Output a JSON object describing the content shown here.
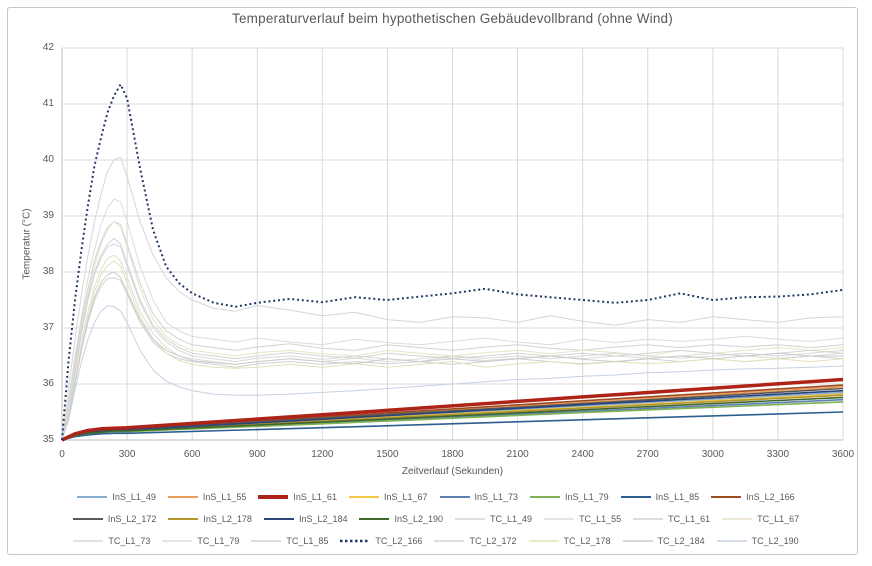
{
  "chart_data": {
    "type": "line",
    "title": "Temperaturverlauf beim hypothetischen Gebäudevollbrand (ohne Wind)",
    "xlabel": "Zeitverlauf (Sekunden)",
    "ylabel": "Temperatur  (°C)",
    "xlim": [
      0,
      3600
    ],
    "ylim": [
      35,
      42
    ],
    "x_ticks": [
      0,
      300,
      600,
      900,
      1200,
      1500,
      1800,
      2100,
      2400,
      2700,
      3000,
      3300,
      3600
    ],
    "y_ticks": [
      35,
      36,
      37,
      38,
      39,
      40,
      41,
      42
    ],
    "grid": true,
    "legend_position": "bottom",
    "legend_columns": 8,
    "colors": {
      "gridline": "#d9d9d9",
      "axis_line": "#bfbfbf",
      "text": "#595959",
      "highlight_red": "#ae2318",
      "highlight_navy_dotted": "#1f3864"
    },
    "x_grids": {
      "ins": [
        0,
        60,
        120,
        180,
        240,
        300,
        1200,
        2400,
        3600
      ],
      "tc": [
        0,
        30,
        60,
        90,
        120,
        150,
        180,
        210,
        240,
        270,
        300,
        360,
        420,
        480,
        540,
        600,
        700,
        800,
        900,
        1050,
        1200,
        1350,
        1500,
        1650,
        1800,
        1950,
        2100,
        2250,
        2400,
        2550,
        2700,
        2850,
        3000,
        3150,
        3300,
        3450,
        3600
      ]
    },
    "series": [
      {
        "name": "InS_L1_49",
        "color": "#85abd0",
        "width": 1.6,
        "dash": "solid",
        "z": 2,
        "grid": "ins",
        "values": [
          35,
          35.09,
          35.14,
          35.16,
          35.17,
          35.18,
          35.36,
          35.61,
          35.85
        ]
      },
      {
        "name": "InS_L1_55",
        "color": "#ee9c57",
        "width": 1.6,
        "dash": "solid",
        "z": 2,
        "grid": "ins",
        "values": [
          35,
          35.1,
          35.14,
          35.17,
          35.18,
          35.19,
          35.4,
          35.67,
          35.95
        ]
      },
      {
        "name": "InS_L1_61",
        "color": "#ae2318",
        "width": 3.5,
        "dash": "solid",
        "z": 3,
        "grid": "ins",
        "values": [
          35,
          35.11,
          35.17,
          35.2,
          35.21,
          35.22,
          35.45,
          35.77,
          36.08
        ]
      },
      {
        "name": "InS_L1_67",
        "color": "#f2c842",
        "width": 1.6,
        "dash": "solid",
        "z": 2,
        "grid": "ins",
        "values": [
          35,
          35.09,
          35.13,
          35.15,
          35.16,
          35.17,
          35.35,
          35.58,
          35.82
        ]
      },
      {
        "name": "InS_L1_73",
        "color": "#5d7fb2",
        "width": 1.6,
        "dash": "solid",
        "z": 2,
        "grid": "ins",
        "values": [
          35,
          35.08,
          35.11,
          35.14,
          35.15,
          35.15,
          35.31,
          35.51,
          35.72
        ]
      },
      {
        "name": "InS_L1_79",
        "color": "#7fb254",
        "width": 1.6,
        "dash": "solid",
        "z": 2,
        "grid": "ins",
        "values": [
          35,
          35.08,
          35.11,
          35.14,
          35.15,
          35.15,
          35.29,
          35.49,
          35.68
        ]
      },
      {
        "name": "InS_L1_85",
        "color": "#2e5e90",
        "width": 1.6,
        "dash": "solid",
        "z": 2,
        "grid": "ins",
        "values": [
          35,
          35.06,
          35.09,
          35.11,
          35.12,
          35.12,
          35.22,
          35.36,
          35.5
        ]
      },
      {
        "name": "InS_L2_166",
        "color": "#9c4a21",
        "width": 1.6,
        "dash": "solid",
        "z": 2,
        "grid": "ins",
        "values": [
          35,
          35.1,
          35.15,
          35.18,
          35.19,
          35.2,
          35.41,
          35.7,
          35.98
        ]
      },
      {
        "name": "InS_L2_172",
        "color": "#595959",
        "width": 1.6,
        "dash": "solid",
        "z": 2,
        "grid": "ins",
        "values": [
          35,
          35.1,
          35.14,
          35.17,
          35.18,
          35.19,
          35.39,
          35.65,
          35.92
        ]
      },
      {
        "name": "InS_L2_178",
        "color": "#b3952c",
        "width": 1.6,
        "dash": "solid",
        "z": 2,
        "grid": "ins",
        "values": [
          35,
          35.09,
          35.13,
          35.15,
          35.16,
          35.17,
          35.34,
          35.57,
          35.8
        ]
      },
      {
        "name": "InS_L2_184",
        "color": "#2b4479",
        "width": 1.6,
        "dash": "solid",
        "z": 2,
        "grid": "ins",
        "values": [
          35,
          35.09,
          35.14,
          35.16,
          35.17,
          35.18,
          35.37,
          35.63,
          35.88
        ]
      },
      {
        "name": "InS_L2_190",
        "color": "#41682b",
        "width": 1.6,
        "dash": "solid",
        "z": 2,
        "grid": "ins",
        "values": [
          35,
          35.08,
          35.12,
          35.14,
          35.16,
          35.16,
          35.32,
          35.54,
          35.76
        ]
      },
      {
        "name": "TC_L1_49",
        "color": "#d6d6d6",
        "width": 1,
        "dash": "solid",
        "z": 1,
        "grid": "tc",
        "values": [
          35,
          35.9,
          36.8,
          37.6,
          38.3,
          38.9,
          39.4,
          39.8,
          40.0,
          40.05,
          39.7,
          38.9,
          38.3,
          37.9,
          37.65,
          37.5,
          37.35,
          37.3,
          37.4,
          37.32,
          37.22,
          37.28,
          37.15,
          37.1,
          37.2,
          37.18,
          37.1,
          37.22,
          37.12,
          37.05,
          37.15,
          37.1,
          37.2,
          37.15,
          37.1,
          37.18,
          37.2
        ]
      },
      {
        "name": "TC_L1_55",
        "color": "#dbdbdb",
        "width": 1,
        "dash": "solid",
        "z": 1,
        "grid": "tc",
        "values": [
          35,
          35.7,
          36.5,
          37.2,
          37.9,
          38.4,
          38.85,
          39.15,
          39.3,
          39.25,
          38.9,
          38.1,
          37.5,
          37.1,
          36.95,
          36.85,
          36.8,
          36.75,
          36.82,
          36.75,
          36.7,
          36.8,
          36.74,
          36.7,
          36.76,
          36.82,
          36.75,
          36.7,
          36.8,
          36.74,
          36.8,
          36.76,
          36.8,
          36.85,
          36.8,
          36.76,
          36.82
        ]
      },
      {
        "name": "TC_L1_61",
        "color": "#d2d2d2",
        "width": 1,
        "dash": "solid",
        "z": 1,
        "grid": "tc",
        "values": [
          35,
          35.6,
          36.4,
          37.1,
          37.7,
          38.2,
          38.55,
          38.8,
          38.9,
          38.85,
          38.5,
          37.8,
          37.25,
          36.95,
          36.8,
          36.7,
          36.65,
          36.6,
          36.66,
          36.72,
          36.64,
          36.6,
          36.7,
          36.65,
          36.6,
          36.66,
          36.7,
          36.64,
          36.6,
          36.66,
          36.7,
          36.65,
          36.7,
          36.66,
          36.7,
          36.65,
          36.7
        ]
      },
      {
        "name": "TC_L1_67",
        "color": "#eae4c8",
        "width": 1,
        "dash": "solid",
        "z": 1,
        "grid": "tc",
        "values": [
          35,
          35.55,
          36.3,
          37.0,
          37.6,
          38.1,
          38.5,
          38.75,
          38.9,
          38.8,
          38.45,
          37.7,
          37.15,
          36.85,
          36.7,
          36.6,
          36.55,
          36.5,
          36.56,
          36.6,
          36.54,
          36.5,
          36.6,
          36.55,
          36.5,
          36.56,
          36.6,
          36.54,
          36.6,
          36.56,
          36.5,
          36.6,
          36.55,
          36.6,
          36.65,
          36.6,
          36.65
        ]
      },
      {
        "name": "TC_L1_73",
        "color": "#d8d8d8",
        "width": 1,
        "dash": "solid",
        "z": 1,
        "grid": "tc",
        "values": [
          35,
          35.5,
          36.2,
          36.9,
          37.5,
          37.95,
          38.25,
          38.45,
          38.5,
          38.45,
          38.1,
          37.45,
          37.0,
          36.75,
          36.6,
          36.5,
          36.45,
          36.4,
          36.46,
          36.5,
          36.44,
          36.5,
          36.45,
          36.4,
          36.5,
          36.46,
          36.5,
          36.45,
          36.5,
          36.55,
          36.5,
          36.46,
          36.5,
          36.55,
          36.5,
          36.55,
          36.6
        ]
      },
      {
        "name": "TC_L1_79",
        "color": "#dddcd5",
        "width": 1,
        "dash": "solid",
        "z": 1,
        "grid": "tc",
        "values": [
          35,
          35.45,
          36.1,
          36.75,
          37.3,
          37.75,
          38.05,
          38.25,
          38.3,
          38.2,
          37.9,
          37.3,
          36.9,
          36.65,
          36.5,
          36.45,
          36.4,
          36.35,
          36.4,
          36.45,
          36.4,
          36.46,
          36.4,
          36.45,
          36.5,
          36.42,
          36.46,
          36.5,
          36.45,
          36.5,
          36.46,
          36.5,
          36.55,
          36.5,
          36.46,
          36.5,
          36.55
        ]
      },
      {
        "name": "TC_L1_85",
        "color": "#d0d0d0",
        "width": 1,
        "dash": "solid",
        "z": 1,
        "grid": "tc",
        "values": [
          35,
          35.4,
          36.0,
          36.6,
          37.1,
          37.5,
          37.75,
          37.88,
          37.9,
          37.85,
          37.6,
          37.1,
          36.75,
          36.55,
          36.45,
          36.4,
          36.35,
          36.3,
          36.36,
          36.4,
          36.35,
          36.4,
          36.36,
          36.4,
          36.35,
          36.4,
          36.45,
          36.4,
          36.36,
          36.4,
          36.45,
          36.4,
          36.45,
          36.4,
          36.45,
          36.5,
          36.45
        ]
      },
      {
        "name": "TC_L2_166",
        "color": "#1f3864",
        "width": 2,
        "dash": "dotted",
        "z": 4,
        "grid": "tc",
        "values": [
          35,
          36.4,
          37.5,
          38.4,
          39.2,
          39.9,
          40.4,
          40.85,
          41.15,
          41.35,
          41.1,
          39.85,
          38.75,
          38.1,
          37.8,
          37.62,
          37.45,
          37.38,
          37.45,
          37.52,
          37.46,
          37.55,
          37.5,
          37.56,
          37.62,
          37.7,
          37.6,
          37.55,
          37.5,
          37.45,
          37.5,
          37.62,
          37.5,
          37.55,
          37.56,
          37.6,
          37.68
        ]
      },
      {
        "name": "TC_L2_172",
        "color": "#d4d4d4",
        "width": 1,
        "dash": "solid",
        "z": 1,
        "grid": "tc",
        "values": [
          35,
          35.5,
          36.25,
          36.95,
          37.55,
          38.0,
          38.3,
          38.5,
          38.6,
          38.5,
          38.15,
          37.5,
          37.05,
          36.8,
          36.65,
          36.55,
          36.5,
          36.45,
          36.5,
          36.56,
          36.5,
          36.46,
          36.55,
          36.5,
          36.46,
          36.5,
          36.55,
          36.5,
          36.55,
          36.5,
          36.55,
          36.6,
          36.55,
          36.5,
          36.55,
          36.6,
          36.55
        ]
      },
      {
        "name": "TC_L2_178",
        "color": "#e6e0b8",
        "width": 1,
        "dash": "solid",
        "z": 1,
        "grid": "tc",
        "values": [
          35,
          35.45,
          36.05,
          36.65,
          37.2,
          37.65,
          37.95,
          38.12,
          38.2,
          38.1,
          37.8,
          37.2,
          36.8,
          36.55,
          36.42,
          36.35,
          36.3,
          36.28,
          36.3,
          36.35,
          36.3,
          36.36,
          36.3,
          36.35,
          36.4,
          36.3,
          36.36,
          36.4,
          36.35,
          36.4,
          36.36,
          36.4,
          36.45,
          36.4,
          36.45,
          36.4,
          36.45
        ]
      },
      {
        "name": "TC_L2_184",
        "color": "#cccccc",
        "width": 1,
        "dash": "solid",
        "z": 1,
        "grid": "tc",
        "values": [
          35,
          35.42,
          36.02,
          36.62,
          37.15,
          37.55,
          37.82,
          37.95,
          38.0,
          37.9,
          37.65,
          37.15,
          36.8,
          36.6,
          36.5,
          36.42,
          36.38,
          36.35,
          36.4,
          36.45,
          36.4,
          36.36,
          36.45,
          36.4,
          36.45,
          36.4,
          36.45,
          36.5,
          36.44,
          36.4,
          36.45,
          36.5,
          36.45,
          36.5,
          36.55,
          36.5,
          36.5
        ]
      },
      {
        "name": "TC_L2_190",
        "color": "#c4d2e2",
        "width": 1,
        "dash": "solid",
        "z": 1,
        "grid": "tc",
        "values": [
          35,
          35.35,
          35.9,
          36.4,
          36.8,
          37.1,
          37.3,
          37.4,
          37.38,
          37.3,
          37.1,
          36.6,
          36.25,
          36.05,
          35.95,
          35.88,
          35.82,
          35.8,
          35.8,
          35.82,
          35.85,
          35.88,
          35.92,
          35.96,
          36.0,
          36.04,
          36.08,
          36.1,
          36.14,
          36.16,
          36.2,
          36.22,
          36.25,
          36.27,
          36.28,
          36.3,
          36.32
        ]
      }
    ]
  }
}
